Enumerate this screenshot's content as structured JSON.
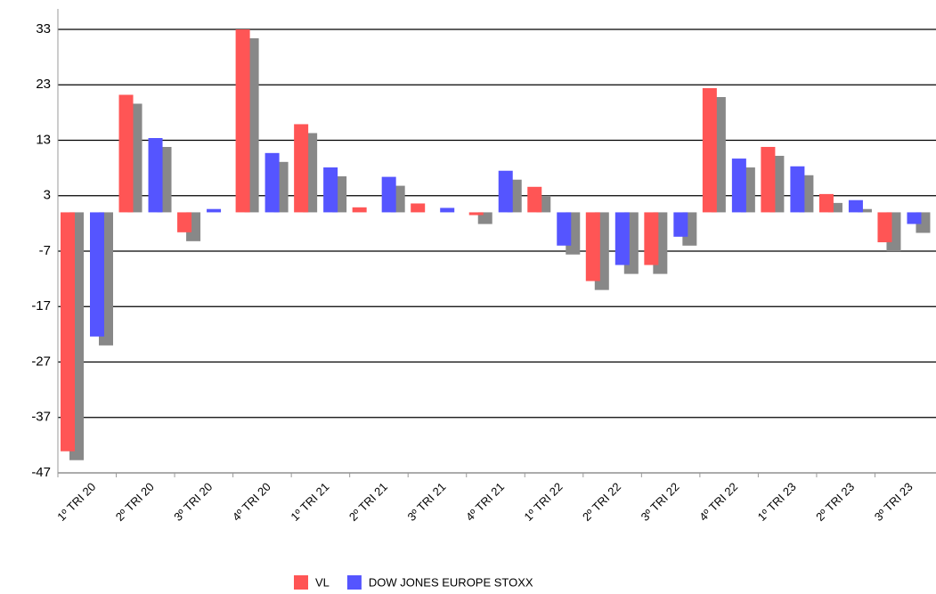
{
  "chart_data": {
    "type": "bar",
    "categories": [
      "1º TRI 20",
      "2º TRI 20",
      "3º TRI 20",
      "4º TRI 20",
      "1º TRI 21",
      "2º TRI 21",
      "3º TRI 21",
      "4º TRI 21",
      "1º TRI 22",
      "2º TRI 22",
      "3º TRI 22",
      "4º TRI 22",
      "1º TRI 23",
      "2º TRI 23",
      "3º TRI 23"
    ],
    "series": [
      {
        "name": "VL",
        "color": "#ff5555",
        "values": [
          -43.1,
          21.2,
          -3.6,
          33,
          15.9,
          0.9,
          1.6,
          -0.5,
          4.6,
          -12.4,
          -9.5,
          22.4,
          11.8,
          3.3,
          -5.4
        ]
      },
      {
        "name": "DOW JONES EUROPE STOXX",
        "color": "#5555ff",
        "values": [
          -22.4,
          13.4,
          0.6,
          10.7,
          8.1,
          6.4,
          0.8,
          7.5,
          -6,
          -9.5,
          -4.4,
          9.7,
          8.3,
          2.2,
          -2.1
        ]
      }
    ],
    "shadow_color": "#888888",
    "ylim": [
      -47,
      33
    ],
    "yticks": [
      -47,
      -37,
      -27,
      -17,
      -7,
      3,
      13,
      23,
      33
    ],
    "grid": true
  }
}
